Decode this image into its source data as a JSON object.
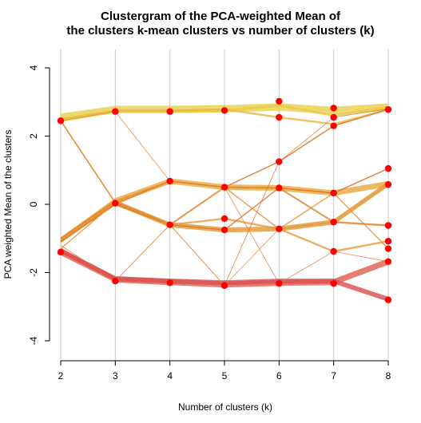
{
  "chart_data": {
    "type": "line",
    "title_lines": [
      "Clustergram of the PCA-weighted Mean of",
      "the clusters k-mean clusters vs number of clusters (k)"
    ],
    "xlabel": "Number of clusters (k)",
    "ylabel": "PCA weighted Mean of the clusters",
    "x_ticks": [
      2,
      3,
      4,
      5,
      6,
      7,
      8
    ],
    "y_ticks": [
      -4,
      -2,
      0,
      2,
      4
    ],
    "xlim": [
      2,
      8
    ],
    "ylim": [
      -4,
      4
    ],
    "grid": "vertical",
    "cluster_centers": [
      {
        "k": 2,
        "values": [
          2.45,
          -1.4
        ]
      },
      {
        "k": 3,
        "values": [
          2.72,
          0.03,
          -2.25
        ]
      },
      {
        "k": 4,
        "values": [
          2.72,
          0.68,
          -0.6,
          -2.3
        ]
      },
      {
        "k": 5,
        "values": [
          2.75,
          0.5,
          -0.42,
          -0.75,
          -2.38
        ]
      },
      {
        "k": 6,
        "values": [
          3.02,
          2.55,
          1.25,
          0.48,
          -0.72,
          -2.32
        ]
      },
      {
        "k": 7,
        "values": [
          2.82,
          2.55,
          2.3,
          0.33,
          -0.52,
          -1.38,
          -2.32
        ]
      },
      {
        "k": 8,
        "values": [
          2.78,
          1.05,
          0.58,
          -0.62,
          -1.08,
          -1.3,
          -1.68,
          -2.8
        ]
      }
    ],
    "bundles": [
      {
        "path": [
          2.55,
          2.78,
          2.78,
          2.8,
          2.85,
          2.75,
          2.85
        ],
        "weight": 12,
        "color": "#e8d04a"
      },
      {
        "path": [
          2.45,
          2.72,
          2.72,
          2.75,
          2.9,
          2.6,
          2.85
        ],
        "weight": 4,
        "color": "#ecc848"
      },
      {
        "path": [
          2.5,
          2.75,
          2.75,
          2.78,
          2.55,
          2.35,
          2.78
        ],
        "weight": 3,
        "color": "#e8b840"
      },
      {
        "path": [
          -1.05,
          0.1,
          0.68,
          0.5,
          0.48,
          0.33,
          0.6
        ],
        "weight": 9,
        "color": "#e8a838"
      },
      {
        "path": [
          -1.05,
          0.05,
          -0.6,
          -0.75,
          -0.72,
          -0.52,
          0.6
        ],
        "weight": 8,
        "color": "#e0982e"
      },
      {
        "path": [
          -1.1,
          0.0,
          0.68,
          0.5,
          1.25,
          2.3,
          2.78
        ],
        "weight": 2,
        "color": "#e07828"
      },
      {
        "path": [
          -1.0,
          0.1,
          -0.6,
          -0.42,
          -0.72,
          -1.38,
          -1.08
        ],
        "weight": 3,
        "color": "#e89838"
      },
      {
        "path": [
          -1.1,
          0.0,
          -0.6,
          -0.75,
          0.48,
          0.33,
          1.05
        ],
        "weight": 2,
        "color": "#e07028"
      },
      {
        "path": [
          2.45,
          0.05,
          -0.6,
          0.5,
          0.48,
          -0.52,
          -0.62
        ],
        "weight": 3,
        "color": "#e08830"
      },
      {
        "path": [
          -1.4,
          -2.2,
          -2.28,
          -2.35,
          -2.3,
          -2.28,
          -1.68
        ],
        "weight": 10,
        "color": "#e06050"
      },
      {
        "path": [
          -1.35,
          -2.18,
          -2.25,
          -2.3,
          -2.25,
          -2.25,
          -2.78
        ],
        "weight": 8,
        "color": "#d85050"
      },
      {
        "path": [
          -1.3,
          0.05,
          0.68,
          0.5,
          -0.72,
          0.33,
          -1.3
        ],
        "weight": 2,
        "color": "#e89030"
      },
      {
        "path": [
          -1.2,
          -2.25,
          -0.6,
          -2.38,
          1.25,
          2.55,
          2.8
        ],
        "weight": 1,
        "color": "#e06828"
      },
      {
        "path": [
          -1.0,
          0.1,
          0.68,
          0.5,
          -2.32,
          -1.38,
          -1.68
        ],
        "weight": 1,
        "color": "#e07840"
      },
      {
        "path": [
          2.45,
          2.72,
          0.68,
          0.5,
          1.25,
          2.3,
          2.78
        ],
        "weight": 1,
        "color": "#e08030"
      },
      {
        "path": [
          -1.1,
          0.03,
          -0.6,
          -2.38,
          -0.72,
          -0.52,
          -0.62
        ],
        "weight": 1,
        "color": "#e88838"
      }
    ]
  },
  "colors": {
    "center_point": "#ff0000",
    "grid": "#c8c8c8",
    "axis": "#000000"
  }
}
